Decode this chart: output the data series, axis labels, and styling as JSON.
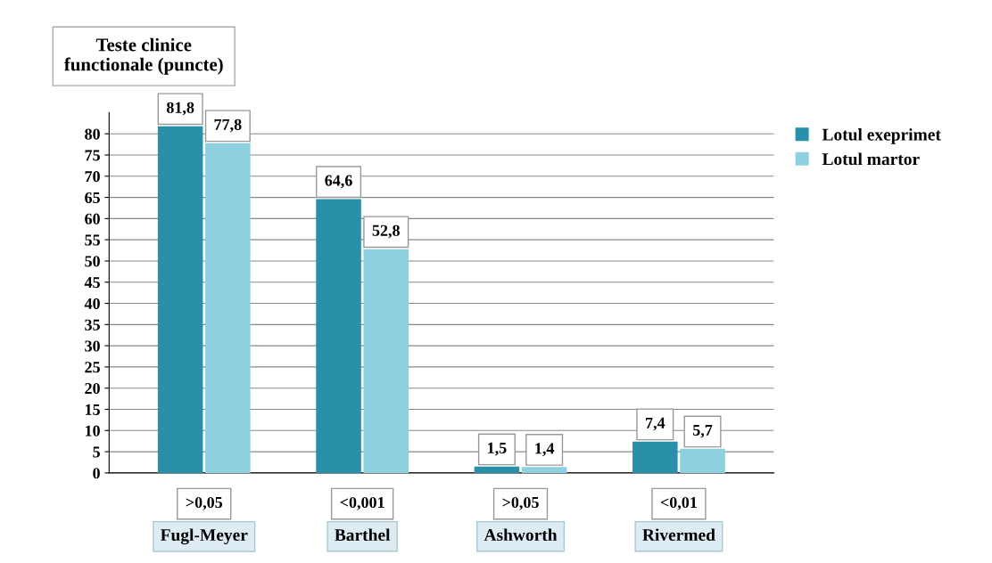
{
  "chart_data": {
    "type": "bar",
    "title": "Teste clinice\nfunctionale (puncte)",
    "categories": [
      "Fugl-Meyer",
      "Barthel",
      "Ashworth",
      "Rivermed"
    ],
    "series": [
      {
        "name": "Lotul exeprimet",
        "color": "#2a8fa8",
        "values": [
          81.8,
          64.6,
          1.5,
          7.4
        ],
        "value_labels": [
          "81,8",
          "64,6",
          "1,5",
          "7,4"
        ]
      },
      {
        "name": "Lotul martor",
        "color": "#8ecfe0",
        "values": [
          77.8,
          52.8,
          1.4,
          5.7
        ],
        "value_labels": [
          "77,8",
          "52,8",
          "1,4",
          "5,7"
        ]
      }
    ],
    "ylim": [
      0,
      85
    ],
    "yticks": [
      0,
      5,
      10,
      15,
      20,
      25,
      30,
      35,
      40,
      45,
      50,
      55,
      60,
      65,
      70,
      75,
      80
    ],
    "grid": "y",
    "legend": "top right",
    "annotations": [
      ">0,05",
      "<0,001",
      ">0,05",
      "<0,01"
    ]
  }
}
